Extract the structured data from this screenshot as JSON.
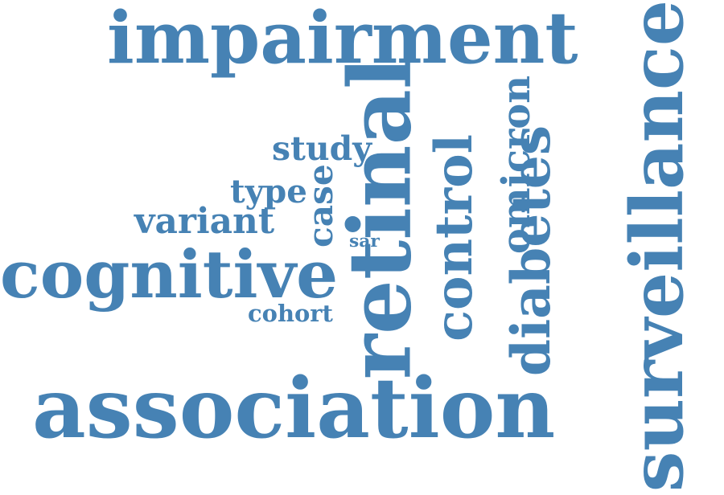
{
  "word_cloud": {
    "color": "#4682b4",
    "words": [
      {
        "text": "impairment",
        "orientation": "horizontal"
      },
      {
        "text": "association",
        "orientation": "horizontal"
      },
      {
        "text": "cognitive",
        "orientation": "horizontal"
      },
      {
        "text": "surveillance",
        "orientation": "vertical"
      },
      {
        "text": "retinal",
        "orientation": "vertical"
      },
      {
        "text": "diabetes",
        "orientation": "vertical"
      },
      {
        "text": "control",
        "orientation": "vertical"
      },
      {
        "text": "omicron",
        "orientation": "vertical"
      },
      {
        "text": "case",
        "orientation": "vertical"
      },
      {
        "text": "study",
        "orientation": "horizontal"
      },
      {
        "text": "type",
        "orientation": "horizontal"
      },
      {
        "text": "variant",
        "orientation": "horizontal"
      },
      {
        "text": "cohort",
        "orientation": "horizontal"
      },
      {
        "text": "sar",
        "orientation": "horizontal"
      }
    ]
  }
}
